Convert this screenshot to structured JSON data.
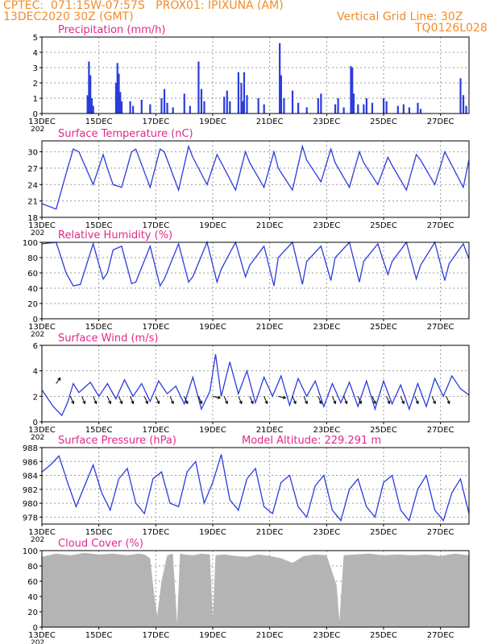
{
  "header": {
    "line1": "CPTEC:  071:15W-07:57S   PROX01: IPIXUNA (AM)",
    "line2": "13DEC2020 30Z (GMT)",
    "grid_note": "Vertical Grid Line: 30Z",
    "code": "TQ0126L028"
  },
  "xaxis": {
    "days": 15,
    "ticks": [
      "13DEC",
      "15DEC",
      "17DEC",
      "19DEC",
      "21DEC",
      "23DEC",
      "25DEC",
      "27DEC"
    ],
    "tick_days": [
      0,
      2,
      4,
      6,
      8,
      10,
      12,
      14
    ],
    "year_label": "202"
  },
  "colors": {
    "line": "#2b3cdc",
    "bar": "#2b3cdc",
    "cloud": "#b4b4b4",
    "title": "#e0288c",
    "header": "#f28c28",
    "grid": "#9a9a9a"
  },
  "chart_data": [
    {
      "id": "precip",
      "type": "bar",
      "title": "Precipitation (mm/h)",
      "ylim": [
        0,
        5
      ],
      "yticks": [
        0,
        1,
        2,
        3,
        4,
        5
      ],
      "bars": [
        [
          1.6,
          1.2
        ],
        [
          1.65,
          3.4
        ],
        [
          1.7,
          2.5
        ],
        [
          1.75,
          1.0
        ],
        [
          1.8,
          0.5
        ],
        [
          2.6,
          2.0
        ],
        [
          2.65,
          3.3
        ],
        [
          2.7,
          2.6
        ],
        [
          2.75,
          1.4
        ],
        [
          2.8,
          0.8
        ],
        [
          3.1,
          0.8
        ],
        [
          3.2,
          0.5
        ],
        [
          3.5,
          0.9
        ],
        [
          3.8,
          0.6
        ],
        [
          4.2,
          1.0
        ],
        [
          4.3,
          1.6
        ],
        [
          4.4,
          0.7
        ],
        [
          4.6,
          0.4
        ],
        [
          5.0,
          1.3
        ],
        [
          5.2,
          0.5
        ],
        [
          5.5,
          3.4
        ],
        [
          5.6,
          1.6
        ],
        [
          5.7,
          0.8
        ],
        [
          6.4,
          1.1
        ],
        [
          6.5,
          1.5
        ],
        [
          6.6,
          0.8
        ],
        [
          6.9,
          2.7
        ],
        [
          7.0,
          2.0
        ],
        [
          7.05,
          0.8
        ],
        [
          7.1,
          2.7
        ],
        [
          7.2,
          1.2
        ],
        [
          7.6,
          1.0
        ],
        [
          7.8,
          0.6
        ],
        [
          8.35,
          4.6
        ],
        [
          8.4,
          2.5
        ],
        [
          8.5,
          1.0
        ],
        [
          8.8,
          1.5
        ],
        [
          9.0,
          0.7
        ],
        [
          9.3,
          0.4
        ],
        [
          9.7,
          1.0
        ],
        [
          9.8,
          1.3
        ],
        [
          10.3,
          0.6
        ],
        [
          10.4,
          1.0
        ],
        [
          10.6,
          0.4
        ],
        [
          10.85,
          3.1
        ],
        [
          10.9,
          3.0
        ],
        [
          10.95,
          1.3
        ],
        [
          11.1,
          0.6
        ],
        [
          11.3,
          0.6
        ],
        [
          11.4,
          1.0
        ],
        [
          11.6,
          0.7
        ],
        [
          12.0,
          1.0
        ],
        [
          12.1,
          0.8
        ],
        [
          12.5,
          0.5
        ],
        [
          12.7,
          0.6
        ],
        [
          12.9,
          0.4
        ],
        [
          13.2,
          0.7
        ],
        [
          13.3,
          0.3
        ],
        [
          14.7,
          2.3
        ],
        [
          14.8,
          1.2
        ],
        [
          14.9,
          0.5
        ]
      ]
    },
    {
      "id": "temp",
      "type": "line",
      "title": "Surface Temperature (nC)",
      "ylim": [
        18,
        32
      ],
      "yticks": [
        18,
        21,
        24,
        27,
        30
      ],
      "x": [
        0,
        0.5,
        0.85,
        1.1,
        1.3,
        1.8,
        2.15,
        2.3,
        2.5,
        2.8,
        3.15,
        3.3,
        3.8,
        4.15,
        4.3,
        4.8,
        5.15,
        5.3,
        5.8,
        6.15,
        6.3,
        6.8,
        7.15,
        7.3,
        7.8,
        8.15,
        8.3,
        8.8,
        9.15,
        9.3,
        9.8,
        10.15,
        10.3,
        10.8,
        11.15,
        11.3,
        11.8,
        12.15,
        12.3,
        12.8,
        13.15,
        13.3,
        13.8,
        14.15,
        14.3,
        14.8,
        15.0
      ],
      "y": [
        20.5,
        19.5,
        26,
        30.5,
        30,
        24,
        29.5,
        27,
        24,
        23.5,
        30,
        30.5,
        23.5,
        30.5,
        30,
        23,
        31,
        29,
        24,
        29.5,
        28,
        23,
        30,
        28,
        23.5,
        30,
        27,
        23,
        31,
        28.5,
        24.5,
        30.5,
        28,
        23.5,
        30,
        28,
        24,
        29,
        27.5,
        23,
        29.5,
        28.5,
        24,
        30,
        28.5,
        23.5,
        28.5
      ]
    },
    {
      "id": "rh",
      "type": "line",
      "title": "Relative Humidity (%)",
      "ylim": [
        0,
        100
      ],
      "yticks": [
        0,
        20,
        40,
        60,
        80,
        100
      ],
      "x": [
        0,
        0.5,
        0.85,
        1.1,
        1.35,
        1.8,
        2.15,
        2.3,
        2.5,
        2.8,
        3.15,
        3.3,
        3.8,
        4.15,
        4.3,
        4.8,
        5.15,
        5.3,
        5.8,
        6.15,
        6.3,
        6.8,
        7.15,
        7.3,
        7.8,
        8.15,
        8.3,
        8.8,
        9.15,
        9.3,
        9.8,
        10.15,
        10.3,
        10.8,
        11.15,
        11.3,
        11.8,
        12.15,
        12.3,
        12.8,
        13.15,
        13.3,
        13.8,
        14.15,
        14.3,
        14.8,
        15.0
      ],
      "y": [
        98,
        100,
        60,
        43,
        45,
        98,
        52,
        60,
        90,
        95,
        46,
        48,
        95,
        43,
        52,
        98,
        48,
        55,
        100,
        48,
        65,
        100,
        55,
        70,
        95,
        43,
        80,
        100,
        45,
        75,
        95,
        50,
        80,
        100,
        48,
        75,
        98,
        58,
        75,
        100,
        52,
        70,
        100,
        50,
        72,
        98,
        78
      ]
    },
    {
      "id": "wind",
      "type": "line",
      "title": "Surface Wind (m/s)",
      "ylim": [
        0,
        6
      ],
      "yticks": [
        0,
        2,
        4,
        6
      ],
      "x": [
        0,
        0.4,
        0.7,
        0.9,
        1.1,
        1.3,
        1.7,
        2.0,
        2.3,
        2.6,
        2.9,
        3.2,
        3.5,
        3.8,
        4.1,
        4.4,
        4.7,
        5.0,
        5.3,
        5.6,
        5.9,
        6.1,
        6.3,
        6.6,
        6.9,
        7.2,
        7.5,
        7.8,
        8.1,
        8.4,
        8.7,
        9.0,
        9.3,
        9.6,
        9.9,
        10.2,
        10.5,
        10.8,
        11.1,
        11.4,
        11.7,
        12.0,
        12.3,
        12.6,
        12.9,
        13.2,
        13.5,
        13.8,
        14.1,
        14.4,
        14.7,
        15.0
      ],
      "y": [
        2.5,
        1.2,
        0.5,
        1.5,
        3.0,
        2.3,
        3.1,
        2.0,
        3.0,
        1.8,
        3.3,
        2.0,
        3.0,
        1.6,
        3.2,
        2.2,
        2.8,
        1.4,
        3.5,
        1.0,
        2.4,
        5.3,
        2.0,
        4.7,
        2.2,
        4.0,
        1.5,
        3.5,
        2.0,
        3.6,
        1.3,
        3.4,
        2.0,
        3.2,
        1.2,
        3.0,
        1.5,
        3.1,
        1.2,
        3.2,
        1.0,
        3.2,
        1.4,
        2.9,
        1.0,
        3.0,
        1.2,
        3.4,
        2.0,
        3.6,
        2.6,
        2.1
      ],
      "arrows": [
        [
          0.5,
          3,
          "up"
        ],
        [
          1.0,
          2,
          "down"
        ],
        [
          1.4,
          2,
          "down"
        ],
        [
          1.8,
          2,
          "down"
        ],
        [
          2.3,
          2,
          "down"
        ],
        [
          2.7,
          2,
          "down"
        ],
        [
          3.1,
          2,
          "down"
        ],
        [
          3.6,
          2,
          "down"
        ],
        [
          4.0,
          2,
          "down"
        ],
        [
          4.5,
          2,
          "down"
        ],
        [
          5.0,
          2,
          "down"
        ],
        [
          5.5,
          2,
          "down"
        ],
        [
          6.0,
          2,
          "right"
        ],
        [
          6.4,
          2,
          "down"
        ],
        [
          6.9,
          2,
          "down"
        ],
        [
          7.3,
          2,
          "down"
        ],
        [
          7.8,
          2,
          "down"
        ],
        [
          8.3,
          2,
          "right"
        ],
        [
          8.8,
          2,
          "down"
        ],
        [
          9.2,
          2,
          "down"
        ],
        [
          9.7,
          2,
          "down"
        ],
        [
          10.2,
          2,
          "down"
        ],
        [
          10.6,
          2,
          "down"
        ],
        [
          11.1,
          2,
          "down"
        ],
        [
          11.6,
          2,
          "down"
        ],
        [
          12.1,
          2,
          "down"
        ],
        [
          12.6,
          2,
          "down"
        ],
        [
          13.1,
          2,
          "down"
        ],
        [
          13.7,
          2,
          "down"
        ],
        [
          14.2,
          2,
          "down"
        ]
      ]
    },
    {
      "id": "pres",
      "type": "line",
      "title": "Surface Pressure (hPa)",
      "subtitle": "Model Altitude: 229.291  m",
      "ylim": [
        977,
        988
      ],
      "yticks": [
        978,
        980,
        982,
        984,
        986,
        988
      ],
      "x": [
        0,
        0.3,
        0.6,
        0.9,
        1.2,
        1.5,
        1.8,
        2.1,
        2.4,
        2.7,
        3.0,
        3.3,
        3.6,
        3.9,
        4.2,
        4.5,
        4.8,
        5.1,
        5.4,
        5.7,
        6.0,
        6.3,
        6.6,
        6.9,
        7.2,
        7.5,
        7.8,
        8.1,
        8.4,
        8.7,
        9.0,
        9.3,
        9.6,
        9.9,
        10.2,
        10.5,
        10.8,
        11.1,
        11.4,
        11.7,
        12.0,
        12.3,
        12.6,
        12.9,
        13.2,
        13.5,
        13.8,
        14.1,
        14.4,
        14.7,
        15.0
      ],
      "y": [
        984.5,
        985.5,
        986.8,
        983.0,
        979.5,
        982.5,
        985.5,
        981.5,
        979.0,
        983.5,
        985.0,
        980.0,
        978.5,
        983.5,
        984.5,
        980.0,
        979.5,
        984.5,
        986.0,
        980.0,
        983.0,
        987.0,
        980.5,
        979.0,
        983.5,
        985.0,
        979.5,
        978.5,
        983.0,
        984.0,
        979.5,
        978.0,
        982.5,
        984.0,
        979.0,
        977.5,
        982.0,
        983.5,
        979.5,
        978.0,
        983.0,
        984.0,
        979.0,
        977.5,
        982.0,
        984.0,
        979.0,
        977.5,
        981.5,
        983.5,
        978.5
      ]
    },
    {
      "id": "cloud",
      "type": "area",
      "title": "Cloud Cover (%)",
      "ylim": [
        0,
        100
      ],
      "yticks": [
        0,
        20,
        40,
        60,
        80,
        100
      ],
      "x": [
        0,
        0.5,
        1.0,
        1.5,
        2.0,
        2.5,
        3.0,
        3.4,
        3.6,
        3.8,
        3.95,
        4.05,
        4.2,
        4.4,
        4.6,
        4.75,
        4.85,
        5.0,
        5.3,
        5.6,
        5.9,
        6.0,
        6.1,
        6.4,
        6.8,
        7.2,
        7.6,
        8.0,
        8.4,
        8.8,
        9.2,
        9.6,
        10.0,
        10.35,
        10.45,
        10.6,
        11.0,
        11.5,
        12.0,
        12.5,
        13.0,
        13.5,
        14.0,
        14.5,
        15.0
      ],
      "y": [
        92,
        96,
        94,
        97,
        95,
        96,
        94,
        96,
        95,
        90,
        40,
        15,
        60,
        94,
        96,
        5,
        96,
        95,
        94,
        96,
        95,
        10,
        94,
        95,
        93,
        92,
        95,
        93,
        90,
        84,
        93,
        95,
        94,
        55,
        8,
        94,
        95,
        96,
        94,
        95,
        94,
        95,
        93,
        96,
        94
      ]
    }
  ]
}
